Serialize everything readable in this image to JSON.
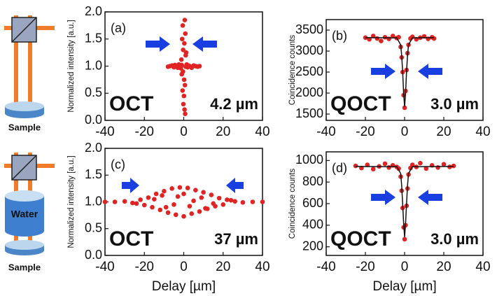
{
  "schematic": {
    "top_sample": "Sample",
    "water": "Water",
    "bottom_sample": "Sample"
  },
  "chart_data": [
    {
      "type": "scatter",
      "panel_label": "(a)",
      "method": "OCT",
      "resolution": "4.2 µm",
      "ylabel": "Normalized intensity [a.u.]",
      "xlim": [
        -40,
        40
      ],
      "xticks": [
        -40,
        -20,
        0,
        20,
        40
      ],
      "ylim": [
        0,
        2
      ],
      "yticks": [
        {
          "value": 0,
          "label": "0.0"
        },
        {
          "value": 0.5,
          "label": "0.5"
        },
        {
          "value": 1,
          "label": "1.0"
        },
        {
          "value": 1.5,
          "label": "1.5"
        },
        {
          "value": 2,
          "label": "2.0"
        }
      ],
      "series": [
        {
          "color": "#e02424",
          "x": [
            -8,
            -7,
            -6,
            -5,
            -4.5,
            -4,
            -3,
            -2.5,
            -2,
            -1.5,
            -1,
            1,
            1.5,
            2,
            2.5,
            3,
            4,
            5,
            6,
            7,
            8,
            0.5,
            -0.5,
            0.8,
            -0.8,
            0.3,
            -0.3,
            1,
            -1,
            0.2,
            0.6,
            -0.6,
            0.1,
            -0.2,
            0.4,
            0.7,
            -1.2,
            1.2,
            -0.4
          ],
          "values": [
            0.99,
            1.0,
            1.01,
            0.98,
            1.02,
            1.0,
            0.97,
            1.03,
            1.0,
            0.96,
            1.02,
            0.99,
            1.03,
            0.98,
            1.01,
            1.0,
            0.97,
            1.01,
            1.0,
            0.99,
            1.0,
            1.85,
            1.75,
            1.6,
            1.5,
            1.42,
            1.3,
            1.2,
            0.85,
            0.75,
            0.65,
            0.55,
            0.45,
            0.3,
            0.2,
            0.12,
            1.12,
            1.25,
            0.9
          ]
        }
      ]
    },
    {
      "type": "scatter",
      "panel_label": "(b)",
      "method": "QOCT",
      "resolution": "3.0 µm",
      "ylabel": "Coincidence counts",
      "xlim": [
        -40,
        40
      ],
      "xticks": [
        -40,
        -20,
        0,
        20,
        40
      ],
      "ylim": [
        1350,
        3750
      ],
      "yticks": [
        1500,
        2000,
        2500,
        3000,
        3500
      ],
      "series": [
        {
          "color": "#e02424",
          "x": [
            -20,
            -18,
            -16,
            -14,
            -12,
            -10,
            -8,
            -6,
            -4,
            -3,
            -2,
            -1.5,
            -1,
            -0.5,
            0,
            0.5,
            1,
            1.5,
            2,
            3,
            4,
            6,
            8,
            10,
            12,
            14,
            15
          ],
          "values": [
            3320,
            3280,
            3360,
            3300,
            3240,
            3330,
            3290,
            3360,
            3310,
            3330,
            3100,
            2850,
            2500,
            1950,
            1650,
            2050,
            2550,
            2950,
            3150,
            3300,
            3340,
            3280,
            3320,
            3350,
            3290,
            3330,
            3300
          ]
        },
        {
          "type": "line",
          "color": "#111111",
          "x": [
            -20,
            -4,
            -2,
            -1.5,
            -1,
            -0.5,
            0,
            0.5,
            1,
            1.5,
            2,
            4,
            15
          ],
          "values": [
            3320,
            3315,
            3150,
            2900,
            2520,
            2000,
            1680,
            2000,
            2520,
            2900,
            3150,
            3315,
            3320
          ]
        }
      ]
    },
    {
      "type": "scatter",
      "panel_label": "(c)",
      "method": "OCT",
      "resolution": "37 µm",
      "ylabel": "Normalized intensity [a.u.]",
      "xlabel": "Delay [µm]",
      "xlim": [
        -40,
        40
      ],
      "xticks": [
        -40,
        -20,
        0,
        20,
        40
      ],
      "ylim": [
        0,
        2
      ],
      "yticks": [
        {
          "value": 0,
          "label": "0.0"
        },
        {
          "value": 0.5,
          "label": "0.5"
        },
        {
          "value": 1,
          "label": "1.0"
        },
        {
          "value": 1.5,
          "label": "1.5"
        },
        {
          "value": 2,
          "label": "2.0"
        }
      ],
      "series": [
        {
          "color": "#e02424",
          "x": [
            -40,
            -35,
            -30,
            -26,
            -22,
            -20,
            -18,
            -16,
            -14,
            -12,
            -10,
            -8,
            -6,
            -4,
            -2,
            0,
            2,
            4,
            6,
            8,
            10,
            12,
            14,
            16,
            18,
            20,
            22,
            26,
            30,
            35,
            40,
            -15,
            -9,
            -3,
            3,
            9,
            15,
            -5,
            5,
            0,
            -11,
            11,
            -24,
            24
          ],
          "values": [
            1.0,
            1.0,
            1.01,
            0.98,
            1.04,
            0.94,
            1.08,
            0.9,
            1.15,
            0.85,
            1.2,
            0.8,
            1.25,
            0.76,
            1.27,
            0.73,
            1.26,
            0.78,
            1.22,
            0.82,
            1.18,
            0.87,
            1.13,
            0.92,
            1.07,
            0.95,
            1.04,
            1.01,
            0.99,
            1.0,
            1.0,
            1.05,
            0.9,
            1.1,
            0.92,
            1.08,
            0.97,
            0.95,
            1.02,
            1.15,
            1.12,
            0.88,
            0.97,
            1.03
          ]
        }
      ]
    },
    {
      "type": "scatter",
      "panel_label": "(d)",
      "method": "QOCT",
      "resolution": "3.0 µm",
      "ylabel": "Coincidence counts",
      "xlabel": "Delay [µm]",
      "xlim": [
        -40,
        40
      ],
      "xticks": [
        -40,
        -20,
        0,
        20,
        40
      ],
      "ylim": [
        120,
        1080
      ],
      "yticks": [
        200,
        400,
        600,
        800,
        1000
      ],
      "series": [
        {
          "color": "#e02424",
          "x": [
            -25,
            -22,
            -19,
            -16,
            -13,
            -10,
            -8,
            -6,
            -4,
            -3,
            -2,
            -1.5,
            -1,
            -0.5,
            0,
            0.5,
            1,
            1.5,
            2,
            3,
            4,
            6,
            8,
            11,
            14,
            17,
            20,
            23,
            25
          ],
          "values": [
            950,
            930,
            960,
            920,
            945,
            970,
            935,
            955,
            940,
            925,
            850,
            720,
            560,
            380,
            270,
            400,
            580,
            740,
            870,
            930,
            960,
            940,
            975,
            925,
            955,
            935,
            965,
            940,
            950
          ]
        },
        {
          "type": "line",
          "color": "#111111",
          "x": [
            -25,
            -4,
            -2,
            -1.5,
            -1,
            -0.5,
            0,
            0.5,
            1,
            1.5,
            2,
            4,
            25
          ],
          "values": [
            945,
            942,
            880,
            770,
            600,
            420,
            290,
            420,
            600,
            770,
            880,
            942,
            945
          ]
        }
      ]
    }
  ]
}
